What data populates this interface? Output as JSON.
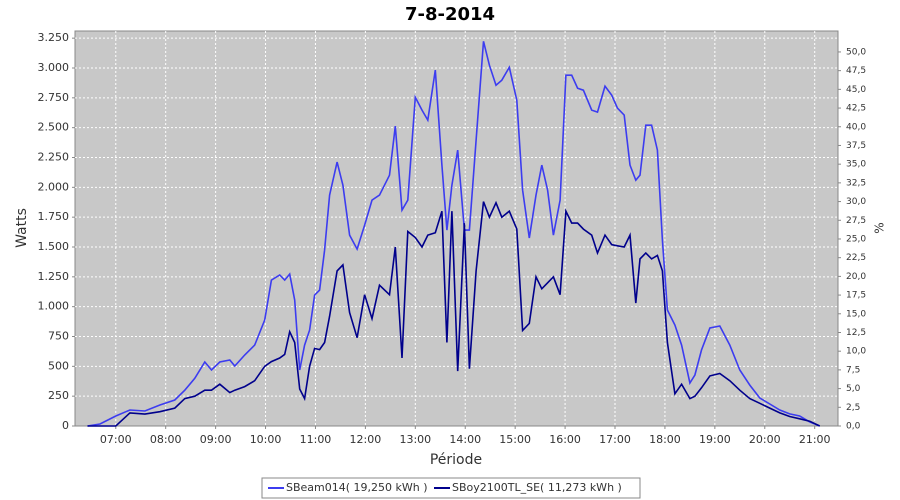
{
  "chart_data": {
    "type": "line",
    "title": "7-8-2014",
    "x_label": "Période",
    "y_label": "Watts",
    "y2_label": "%",
    "x": [
      "06:26",
      "06:41",
      "07:00",
      "07:17",
      "07:35",
      "07:53",
      "08:11",
      "08:23",
      "08:35",
      "08:47",
      "08:55",
      "09:05",
      "09:17",
      "09:23",
      "09:35",
      "09:47",
      "09:59",
      "10:07",
      "10:17",
      "10:23",
      "10:29",
      "10:35",
      "10:41",
      "10:47",
      "10:53",
      "10:59",
      "11:05",
      "11:11",
      "11:17",
      "11:26",
      "11:33",
      "11:41",
      "11:50",
      "11:59",
      "12:08",
      "12:17",
      "12:29",
      "12:36",
      "12:44",
      "12:51",
      "13:00",
      "13:08",
      "13:15",
      "13:24",
      "13:32",
      "13:38",
      "13:44",
      "13:51",
      "13:59",
      "14:05",
      "14:13",
      "14:22",
      "14:29",
      "14:37",
      "14:44",
      "14:53",
      "15:02",
      "15:09",
      "15:17",
      "15:25",
      "15:32",
      "15:39",
      "15:46",
      "15:54",
      "16:01",
      "16:08",
      "16:15",
      "16:22",
      "16:32",
      "16:39",
      "16:48",
      "16:56",
      "17:03",
      "17:11",
      "17:18",
      "17:25",
      "17:30",
      "17:37",
      "17:44",
      "17:51",
      "17:57",
      "18:03",
      "18:12",
      "18:20",
      "18:30",
      "18:36",
      "18:44",
      "18:54",
      "19:06",
      "19:18",
      "19:30",
      "19:42",
      "19:54",
      "20:06",
      "20:18",
      "20:30",
      "20:42",
      "20:54",
      "21:06"
    ],
    "series": [
      {
        "name": "SBeam014( 19,250 kWh )",
        "color": "#3c3cf0",
        "values": [
          0,
          17,
          84,
          134,
          126,
          176,
          218,
          300,
          400,
          536,
          469,
          536,
          553,
          503,
          595,
          678,
          888,
          1223,
          1265,
          1223,
          1273,
          1055,
          469,
          678,
          804,
          1097,
          1139,
          1474,
          1935,
          2211,
          2018,
          1600,
          1482,
          1683,
          1893,
          1935,
          2102,
          2513,
          1809,
          1893,
          2755,
          2647,
          2563,
          2982,
          2186,
          1642,
          2018,
          2312,
          1642,
          1642,
          2395,
          3224,
          3023,
          2856,
          2898,
          3006,
          2730,
          1977,
          1575,
          1935,
          2186,
          1977,
          1600,
          1893,
          2940,
          2940,
          2831,
          2814,
          2647,
          2630,
          2848,
          2772,
          2663,
          2605,
          2186,
          2060,
          2102,
          2521,
          2521,
          2312,
          1558,
          972,
          846,
          678,
          360,
          427,
          637,
          821,
          838,
          678,
          469,
          343,
          235,
          184,
          134,
          101,
          84,
          34,
          0
        ]
      },
      {
        "name": "SBoy2100TL_SE( 11,273 kWh )",
        "color": "#00008c",
        "values": [
          0,
          0,
          0,
          110,
          100,
          120,
          150,
          230,
          250,
          300,
          300,
          350,
          280,
          300,
          330,
          380,
          500,
          540,
          570,
          600,
          790,
          700,
          310,
          230,
          500,
          650,
          640,
          700,
          920,
          1300,
          1350,
          950,
          740,
          1100,
          900,
          1180,
          1100,
          1500,
          570,
          1630,
          1580,
          1500,
          1600,
          1620,
          1800,
          700,
          1800,
          460,
          1700,
          480,
          1300,
          1880,
          1750,
          1870,
          1750,
          1800,
          1650,
          800,
          860,
          1250,
          1150,
          1200,
          1250,
          1100,
          1800,
          1700,
          1700,
          1650,
          1600,
          1450,
          1600,
          1520,
          1510,
          1500,
          1600,
          1030,
          1400,
          1450,
          1400,
          1430,
          1300,
          700,
          270,
          350,
          230,
          250,
          320,
          420,
          440,
          380,
          300,
          230,
          190,
          150,
          110,
          80,
          60,
          40,
          0
        ]
      }
    ],
    "xlim": [
      "06:11",
      "21:28"
    ],
    "xticks": [
      "07:00",
      "08:00",
      "09:00",
      "10:00",
      "11:00",
      "12:00",
      "13:00",
      "14:00",
      "15:00",
      "16:00",
      "17:00",
      "18:00",
      "19:00",
      "20:00",
      "21:00"
    ],
    "ylim": [
      0,
      3310
    ],
    "yticks": [
      0,
      250,
      500,
      750,
      {
        "value": 1000,
        "label": "1.000"
      },
      {
        "value": 1250,
        "label": "1.250"
      },
      {
        "value": 1500,
        "label": "1.500"
      },
      {
        "value": 1750,
        "label": "1.750"
      },
      {
        "value": 2000,
        "label": "2.000"
      },
      {
        "value": 2250,
        "label": "2.250"
      },
      {
        "value": 2500,
        "label": "2.500"
      },
      {
        "value": 2750,
        "label": "2.750"
      },
      {
        "value": 3000,
        "label": "3.000"
      },
      {
        "value": 3250,
        "label": "3.250"
      }
    ],
    "y2lim": [
      0,
      52.8
    ],
    "y2ticks": [
      {
        "value": 0,
        "label": "0,0"
      },
      {
        "value": 2.5,
        "label": "2,5"
      },
      {
        "value": 5,
        "label": "5,0"
      },
      {
        "value": 7.5,
        "label": "7,5"
      },
      {
        "value": 10,
        "label": "10,0"
      },
      {
        "value": 12.5,
        "label": "12,5"
      },
      {
        "value": 15,
        "label": "15,0"
      },
      {
        "value": 17.5,
        "label": "17,5"
      },
      {
        "value": 20,
        "label": "20,0"
      },
      {
        "value": 22.5,
        "label": "22,5"
      },
      {
        "value": 25,
        "label": "25,0"
      },
      {
        "value": 27.5,
        "label": "27,5"
      },
      {
        "value": 30,
        "label": "30,0"
      },
      {
        "value": 32.5,
        "label": "32,5"
      },
      {
        "value": 35,
        "label": "35,0"
      },
      {
        "value": 37.5,
        "label": "37,5"
      },
      {
        "value": 40,
        "label": "40,0"
      },
      {
        "value": 42.5,
        "label": "42,5"
      },
      {
        "value": 45,
        "label": "45,0"
      },
      {
        "value": 47.5,
        "label": "47,5"
      },
      {
        "value": 50,
        "label": "50,0"
      }
    ],
    "grid": true
  }
}
